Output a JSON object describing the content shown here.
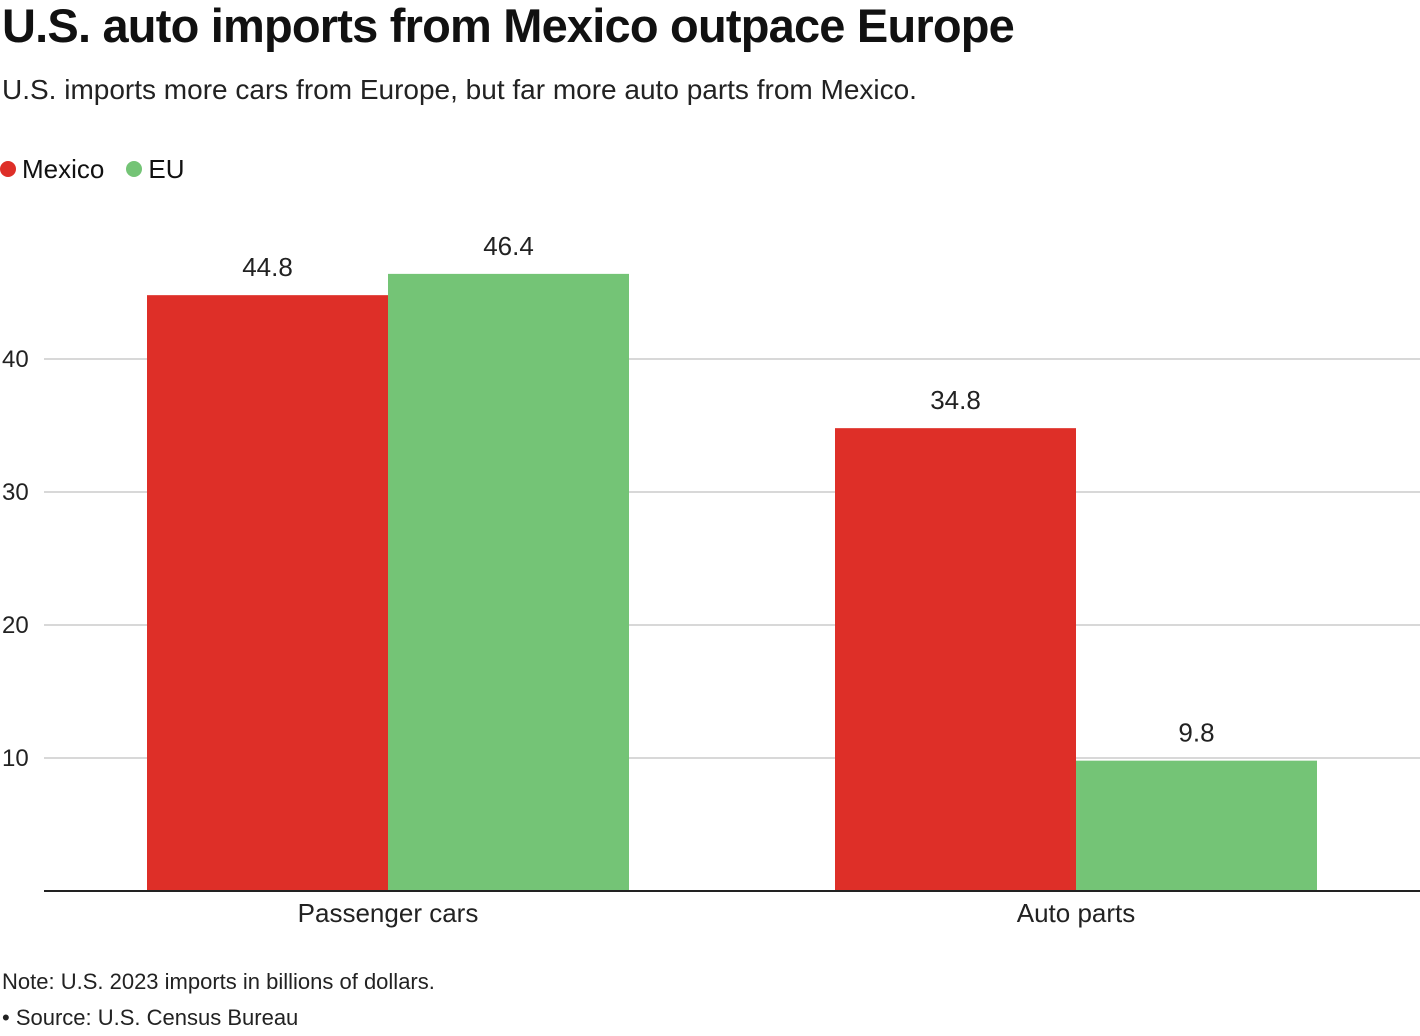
{
  "header": {
    "title": "U.S. auto imports from Mexico outpace Europe",
    "subtitle": "U.S. imports more cars from Europe, but far more auto parts from Mexico."
  },
  "footer": {
    "note": "Note: U.S. 2023 imports in billions of dollars.",
    "source": "• Source: U.S. Census Bureau"
  },
  "chart_data": {
    "type": "bar",
    "title": "U.S. auto imports from Mexico outpace Europe",
    "subtitle": "U.S. imports more cars from Europe, but far more auto parts from Mexico.",
    "categories": [
      "Passenger cars",
      "Auto parts"
    ],
    "series": [
      {
        "name": "Mexico",
        "color": "#de2f28",
        "values": [
          44.8,
          34.8
        ]
      },
      {
        "name": "EU",
        "color": "#74c476",
        "values": [
          46.4,
          9.8
        ]
      }
    ],
    "xlabel": "",
    "ylabel": "",
    "ylim": [
      0,
      50
    ],
    "yticks": [
      10,
      20,
      30,
      40
    ],
    "grid": true,
    "legend_position": "top-left",
    "units": "billions of dollars"
  }
}
